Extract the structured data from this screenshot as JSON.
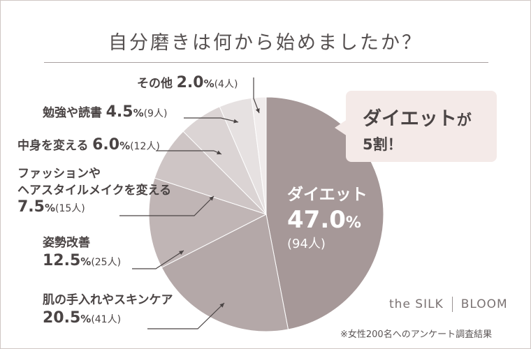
{
  "title": "自分磨きは何から始めましたか？",
  "callout": {
    "line1_big": "ダイエット",
    "line1_small": "が",
    "line2": "5割！"
  },
  "brand": {
    "left": "the SILK",
    "right": "BLOOM"
  },
  "footnote": "※女性200名へのアンケート調査結果",
  "unit_percent": "%",
  "colors": {
    "diet": "#a69898",
    "skincare": "#b4a8a8",
    "posture": "#c0b5b5",
    "fashion": "#cec5c5",
    "body": "#dbd4d4",
    "study": "#e6e1e1",
    "other": "#f0ecec",
    "callout_bg": "#f4eae8"
  },
  "chart_data": {
    "type": "pie",
    "title": "自分磨きは何から始めましたか？",
    "slices": [
      {
        "key": "diet",
        "label": "ダイエット",
        "value": 47.0,
        "value_text": "47.0",
        "count_text": "(94人)"
      },
      {
        "key": "skincare",
        "label": "肌の手入れやスキンケア",
        "value": 20.5,
        "value_text": "20.5",
        "count_text": "(41人)"
      },
      {
        "key": "posture",
        "label": "姿勢改善",
        "value": 12.5,
        "value_text": "12.5",
        "count_text": "(25人)"
      },
      {
        "key": "fashion",
        "label_lines": [
          "ファッションや",
          "ヘアスタイルメイクを変える"
        ],
        "value": 7.5,
        "value_text": "7.5",
        "count_text": "(15人)"
      },
      {
        "key": "body",
        "label": "中身を変える",
        "value": 6.0,
        "value_text": "6.0",
        "count_text": "(12人)"
      },
      {
        "key": "study",
        "label": "勉強や読書",
        "value": 4.5,
        "value_text": "4.5",
        "count_text": "(9人)"
      },
      {
        "key": "other",
        "label": "その他",
        "value": 2.0,
        "value_text": "2.0",
        "count_text": "(4人)"
      }
    ]
  }
}
